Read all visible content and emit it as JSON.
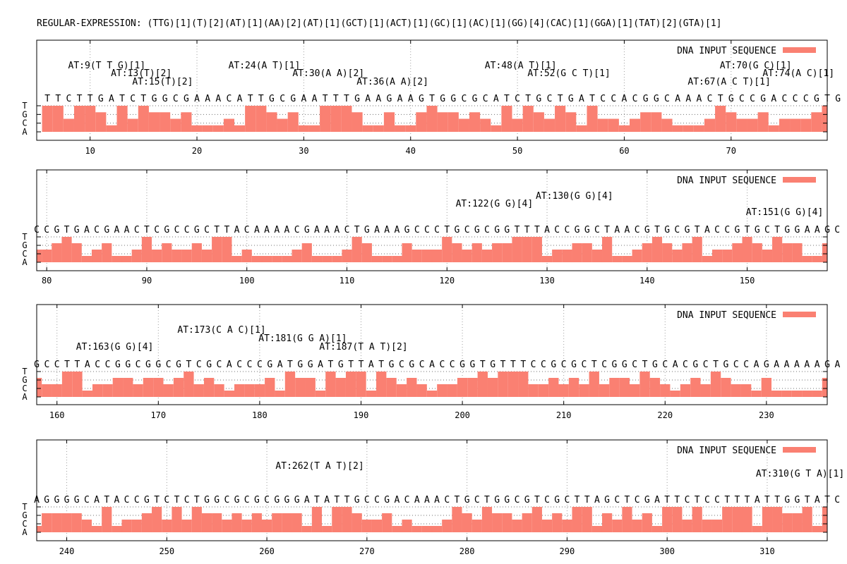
{
  "title": "REGULAR-EXPRESSION: (TTG)[1](T)[2](AT)[1](AA)[2](AT)[1](GCT)[1](ACT)[1](GC)[1](AC)[1](GG)[4](CAC)[1](GGA)[1](TAT)[2](GTA)[1]",
  "legend_label": "DNA INPUT SEQUENCE",
  "bar_color": "#fa8072",
  "y_tick_labels": [
    "T",
    "G",
    "C",
    "A"
  ],
  "chart_data": [
    {
      "type": "bar",
      "xlim": [
        5,
        79
      ],
      "x_ticks": [
        10,
        20,
        30,
        40,
        50,
        60,
        70
      ],
      "sequence_start": 6,
      "sequence": "TTCTTGATCTGGCGAAACATTGCGAATTTGAAGAAGTGGCGCATCTGCTGATCCACGGCAAACTGCCGACCCGTG",
      "legend": "top-right",
      "grid": true,
      "annotations": [
        {
          "text": "AT:9(T T G)[1]",
          "pos": 9,
          "level": 0
        },
        {
          "text": "AT:13(T)[2]",
          "pos": 13,
          "level": 1
        },
        {
          "text": "AT:15(T)[2]",
          "pos": 15,
          "level": 2
        },
        {
          "text": "AT:24(A T)[1]",
          "pos": 24,
          "level": 0
        },
        {
          "text": "AT:30(A A)[2]",
          "pos": 30,
          "level": 1
        },
        {
          "text": "AT:36(A A)[2]",
          "pos": 36,
          "level": 2
        },
        {
          "text": "AT:48(A T)[1]",
          "pos": 48,
          "level": 0
        },
        {
          "text": "AT:52(G C T)[1]",
          "pos": 52,
          "level": 1
        },
        {
          "text": "AT:67(A C T)[1]",
          "pos": 67,
          "level": 2
        },
        {
          "text": "AT:70(G C)[1]",
          "pos": 70,
          "level": 0
        },
        {
          "text": "AT:74(A C)[1]",
          "pos": 74,
          "level": 1
        }
      ]
    },
    {
      "type": "bar",
      "xlim": [
        79,
        158
      ],
      "x_ticks": [
        80,
        90,
        100,
        110,
        120,
        130,
        140,
        150
      ],
      "sequence_start": 79,
      "sequence": "CCGTGACGAACTCGCCGCTTACAAAACGAAACTGAAAGCCCTGCGCGGTTTACCGGCTAACGTGCGTACCGTGCTGGAAGCCTT",
      "legend": "top-right",
      "grid": true,
      "annotations": [
        {
          "text": "AT:130(G G)[4]",
          "pos": 130,
          "level": 0
        },
        {
          "text": "AT:122(G G)[4]",
          "pos": 122,
          "level": 2
        },
        {
          "text": "AT:151(G G)[4]",
          "pos": 151,
          "level": 1
        }
      ]
    },
    {
      "type": "bar",
      "xlim": [
        158,
        236
      ],
      "x_ticks": [
        160,
        170,
        180,
        190,
        200,
        210,
        220,
        230
      ],
      "sequence_start": 158,
      "sequence": "GCCTTACCGGCGGCGTCGCACCCGATGGATGTTATGCGCACCGGTGTTTCCGCGCTCGGCTGCACGCTGCCAGAAAAAGAGGGG",
      "legend": "top-right",
      "grid": true,
      "annotations": [
        {
          "text": "AT:173(C A C)[1]",
          "pos": 173,
          "level": 0
        },
        {
          "text": "AT:181(G G A)[1]",
          "pos": 181,
          "level": 1
        },
        {
          "text": "AT:163(G G)[4]",
          "pos": 163,
          "level": 2
        },
        {
          "text": "AT:187(T A T)[2]",
          "pos": 187,
          "level": 2
        }
      ]
    },
    {
      "type": "bar",
      "xlim": [
        237,
        316
      ],
      "x_ticks": [
        240,
        250,
        260,
        270,
        280,
        290,
        300,
        310
      ],
      "sequence_start": 237,
      "sequence": "AGGGGCATACCGTCTCTGGCGCGCGGGATATTGCCGACAAACTGCTGGCGTCGCTTAGCTCGATTCTCCTTTATTGGTATCAC",
      "legend": "top-right",
      "grid": true,
      "annotations": [
        {
          "text": "AT:262(T A T)[2]",
          "pos": 262,
          "level": 0
        },
        {
          "text": "AT:310(G T A)[1]",
          "pos": 310,
          "level": 1
        }
      ]
    }
  ]
}
